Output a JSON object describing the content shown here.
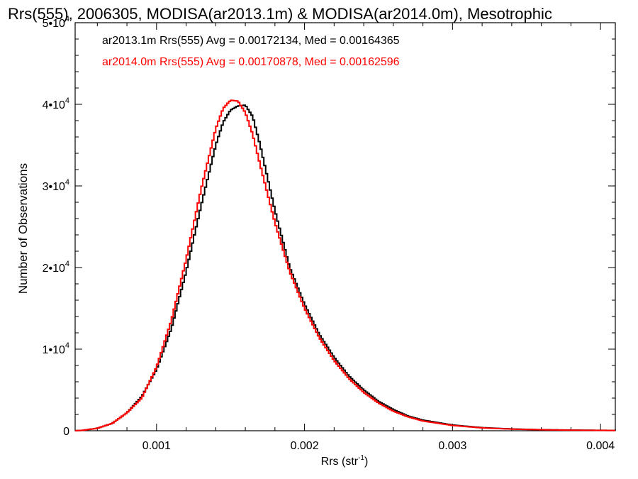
{
  "chart_data": {
    "type": "line",
    "title": "Rrs(555), 2006305, MODISA(ar2013.1m) & MODISA(ar2014.0m), Mesotrophic",
    "xlabel": "Rrs (str",
    "xlabel_sup": "-1",
    "xlabel_end": ")",
    "ylabel": "Number of Observations",
    "xlim": [
      0.00045,
      0.0041
    ],
    "ylim": [
      0,
      50000
    ],
    "x_ticks": [
      {
        "value": 0.001,
        "label": "0.001"
      },
      {
        "value": 0.002,
        "label": "0.002"
      },
      {
        "value": 0.003,
        "label": "0.003"
      },
      {
        "value": 0.004,
        "label": "0.004"
      }
    ],
    "y_ticks": [
      {
        "value": 0,
        "mant": "0",
        "exp": ""
      },
      {
        "value": 10000,
        "mant": "1•10",
        "exp": "4"
      },
      {
        "value": 20000,
        "mant": "2•10",
        "exp": "4"
      },
      {
        "value": 30000,
        "mant": "3•10",
        "exp": "4"
      },
      {
        "value": 40000,
        "mant": "4•10",
        "exp": "4"
      },
      {
        "value": 50000,
        "mant": "5•10",
        "exp": "4"
      }
    ],
    "annotations": [
      {
        "text": "ar2013.1m Rrs(555) Avg = 0.00172134, Med = 0.00164365",
        "color": "#000000"
      },
      {
        "text": "ar2014.0m Rrs(555) Avg = 0.00170878, Med = 0.00162596",
        "color": "#ff0000"
      }
    ],
    "series": [
      {
        "color": "#000000",
        "x": [
          0.00045,
          0.0005,
          0.0006,
          0.0007,
          0.0008,
          0.0009,
          0.001,
          0.0011,
          0.0012,
          0.0013,
          0.0014,
          0.00145,
          0.0015,
          0.00155,
          0.0016,
          0.00165,
          0.0017,
          0.0018,
          0.0019,
          0.002,
          0.0021,
          0.0022,
          0.0023,
          0.0024,
          0.0025,
          0.0026,
          0.0027,
          0.0028,
          0.003,
          0.0032,
          0.0034,
          0.0036,
          0.0038,
          0.0041
        ],
        "y": [
          0,
          50,
          300,
          900,
          2200,
          4200,
          7500,
          12500,
          19500,
          27500,
          35000,
          37800,
          39300,
          39800,
          39900,
          38500,
          35000,
          27000,
          20000,
          15500,
          11800,
          9000,
          6700,
          5000,
          3600,
          2600,
          1800,
          1300,
          700,
          380,
          220,
          130,
          80,
          40
        ]
      },
      {
        "color": "#ff0000",
        "x": [
          0.00045,
          0.0005,
          0.0006,
          0.0007,
          0.0008,
          0.0009,
          0.001,
          0.0011,
          0.0012,
          0.0013,
          0.0014,
          0.00145,
          0.0015,
          0.00155,
          0.0016,
          0.00165,
          0.0017,
          0.0018,
          0.0019,
          0.002,
          0.0021,
          0.0022,
          0.0023,
          0.0024,
          0.0025,
          0.0026,
          0.0027,
          0.0028,
          0.003,
          0.0032,
          0.0034,
          0.0036,
          0.0038,
          0.0041
        ],
        "y": [
          0,
          50,
          300,
          900,
          2200,
          4000,
          7800,
          13500,
          21000,
          29500,
          37000,
          39500,
          40500,
          40400,
          39000,
          36300,
          32600,
          25500,
          19500,
          15000,
          11400,
          8600,
          6400,
          4700,
          3400,
          2400,
          1700,
          1200,
          650,
          350,
          200,
          120,
          70,
          30
        ]
      }
    ]
  }
}
